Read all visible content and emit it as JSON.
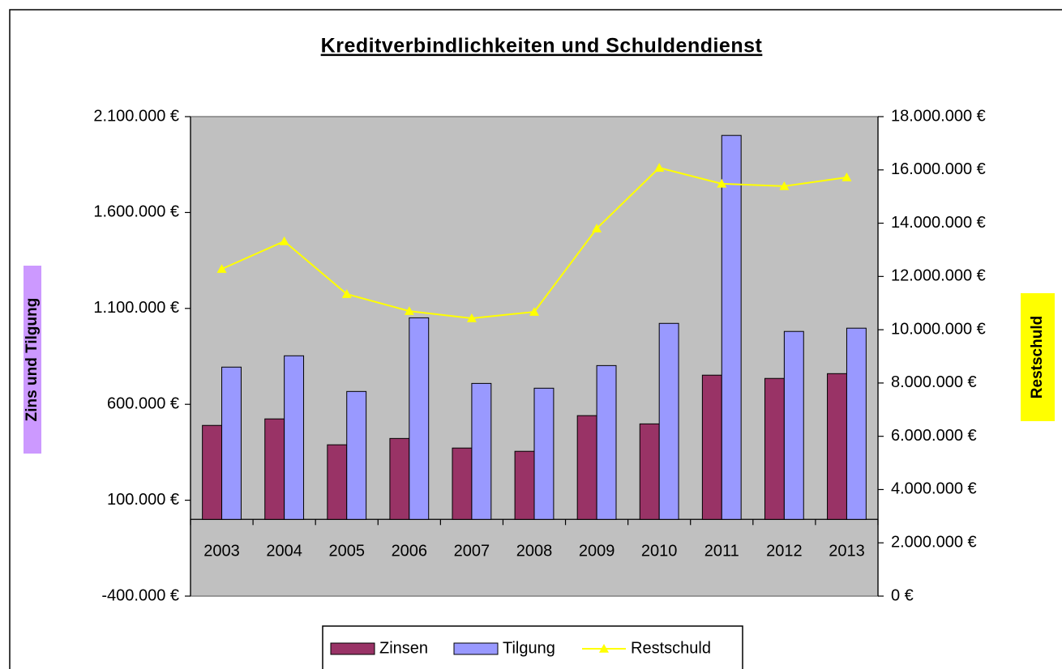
{
  "chart_data": {
    "type": "bar",
    "title": "Kreditverbindlichkeiten und Schuldendienst",
    "ylabel": "Zins und Tilgung",
    "y2label": "Restschuld",
    "categories": [
      "2003",
      "2004",
      "2005",
      "2006",
      "2007",
      "2008",
      "2009",
      "2010",
      "2011",
      "2012",
      "2013"
    ],
    "series": [
      {
        "name": "Zinsen",
        "type": "bar",
        "color": "#993366",
        "values": [
          490000,
          524000,
          389000,
          422000,
          372000,
          355000,
          541000,
          498000,
          752000,
          735000,
          760000
        ]
      },
      {
        "name": "Tilgung",
        "type": "bar",
        "color": "#9999ff",
        "values": [
          794000,
          853000,
          667000,
          1051000,
          709000,
          684000,
          802000,
          1022000,
          2002000,
          980000,
          997000
        ]
      },
      {
        "name": "Restschuld",
        "type": "line",
        "axis": "y2",
        "color": "#ffff00",
        "values": [
          12280000,
          13320000,
          11340000,
          10700000,
          10430000,
          10670000,
          13800000,
          16080000,
          15480000,
          15390000,
          15720000
        ]
      }
    ],
    "ylim": [
      -400000,
      2100000
    ],
    "yticks": [
      {
        "value": -400000,
        "label": "-400.000 €"
      },
      {
        "value": 100000,
        "label": "100.000 €"
      },
      {
        "value": 600000,
        "label": "600.000 €"
      },
      {
        "value": 1100000,
        "label": "1.100.000 €"
      },
      {
        "value": 1600000,
        "label": "1.600.000 €"
      },
      {
        "value": 2100000,
        "label": "2.100.000 €"
      }
    ],
    "y2lim": [
      0,
      18000000
    ],
    "y2ticks": [
      {
        "value": 0,
        "label": "0 €"
      },
      {
        "value": 2000000,
        "label": "2.000.000 €"
      },
      {
        "value": 4000000,
        "label": "4.000.000 €"
      },
      {
        "value": 6000000,
        "label": "6.000.000 €"
      },
      {
        "value": 8000000,
        "label": "8.000.000 €"
      },
      {
        "value": 10000000,
        "label": "10.000.000 €"
      },
      {
        "value": 12000000,
        "label": "12.000.000 €"
      },
      {
        "value": 14000000,
        "label": "14.000.000 €"
      },
      {
        "value": 16000000,
        "label": "16.000.000 €"
      },
      {
        "value": 18000000,
        "label": "18.000.000 €"
      }
    ],
    "grid": false,
    "legend": "bottom"
  }
}
